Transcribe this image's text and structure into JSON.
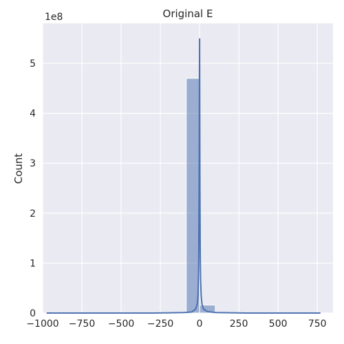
{
  "chart_data": {
    "type": "bar",
    "title": "Original E",
    "xlabel": "",
    "ylabel": "Count",
    "y_offset_label": "1e8",
    "xlim": [
      -1000,
      850
    ],
    "ylim": [
      0,
      5.8
    ],
    "x_ticks": [
      -1000,
      -750,
      -500,
      -250,
      0,
      250,
      500,
      750
    ],
    "x_tick_labels": [
      "−1000",
      "−750",
      "−500",
      "−250",
      "0",
      "250",
      "500",
      "750"
    ],
    "y_ticks": [
      0,
      1,
      2,
      3,
      4,
      5
    ],
    "y_tick_labels": [
      "0",
      "1",
      "2",
      "3",
      "4",
      "5"
    ],
    "grid": true,
    "background": "#EAEAF2",
    "bar_color": "#4C72B0",
    "bins": [
      {
        "x0": -975,
        "x1": -880,
        "value": 0.01
      },
      {
        "x0": -880,
        "x1": -780,
        "value": 0.01
      },
      {
        "x0": -780,
        "x1": -680,
        "value": 0.01
      },
      {
        "x0": -680,
        "x1": -580,
        "value": 0.01
      },
      {
        "x0": -580,
        "x1": -480,
        "value": 0.01
      },
      {
        "x0": -480,
        "x1": -380,
        "value": 0.01
      },
      {
        "x0": -380,
        "x1": -280,
        "value": 0.01
      },
      {
        "x0": -280,
        "x1": -180,
        "value": 0.01
      },
      {
        "x0": -180,
        "x1": -85,
        "value": 0.01
      },
      {
        "x0": -85,
        "x1": 0,
        "value": 4.7
      },
      {
        "x0": 0,
        "x1": 100,
        "value": 0.16
      },
      {
        "x0": 100,
        "x1": 200,
        "value": 0.01
      },
      {
        "x0": 200,
        "x1": 300,
        "value": 0.01
      },
      {
        "x0": 300,
        "x1": 400,
        "value": 0.01
      },
      {
        "x0": 400,
        "x1": 500,
        "value": 0.01
      },
      {
        "x0": 500,
        "x1": 600,
        "value": 0.01
      },
      {
        "x0": 600,
        "x1": 700,
        "value": 0.01
      },
      {
        "x0": 700,
        "x1": 770,
        "value": 0.01
      }
    ],
    "kde": {
      "x": [
        -975,
        -300,
        -100,
        -50,
        -25,
        -15,
        -10,
        -6,
        -3,
        0,
        2,
        4,
        6,
        10,
        15,
        25,
        50,
        100,
        300,
        770
      ],
      "y": [
        0,
        0,
        0.01,
        0.02,
        0.08,
        0.18,
        0.35,
        0.9,
        2.5,
        5.5,
        2.6,
        1.2,
        0.7,
        0.35,
        0.18,
        0.08,
        0.03,
        0.01,
        0,
        0
      ]
    }
  }
}
